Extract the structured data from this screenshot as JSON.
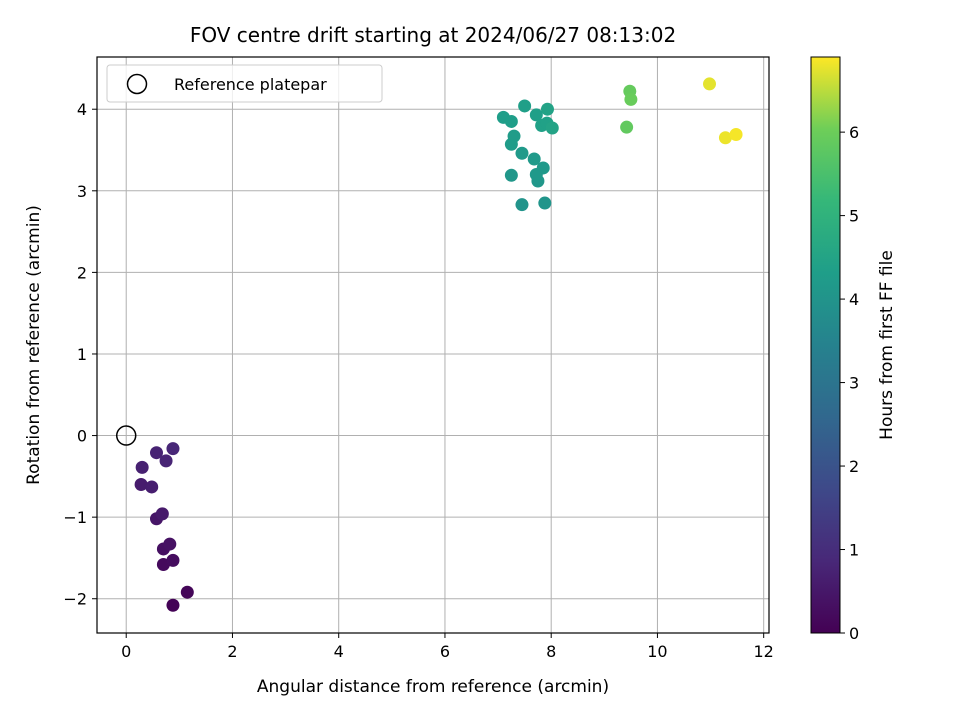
{
  "chart_data": {
    "type": "scatter",
    "title": "FOV centre drift starting at 2024/06/27 08:13:02",
    "xlabel": "Angular distance from reference (arcmin)",
    "ylabel": "Rotation from reference (arcmin)",
    "xlim": [
      -0.55,
      12.1
    ],
    "ylim": [
      -2.42,
      4.64
    ],
    "xticks": [
      0,
      2,
      4,
      6,
      8,
      10,
      12
    ],
    "yticks": [
      -2,
      -1,
      0,
      1,
      2,
      3,
      4
    ],
    "grid": true,
    "legend": {
      "position": "top-left",
      "entries": [
        "Reference platepar"
      ]
    },
    "reference_point": {
      "x": 0,
      "y": 0
    },
    "colorbar": {
      "label": "Hours from first FF file",
      "range": [
        0,
        6.9
      ],
      "ticks": [
        0,
        1,
        2,
        3,
        4,
        5,
        6
      ],
      "colormap": "viridis"
    },
    "points": [
      {
        "x": 0.88,
        "y": -2.08,
        "h": 0.05
      },
      {
        "x": 1.15,
        "y": -1.92,
        "h": 0.1
      },
      {
        "x": 0.7,
        "y": -1.58,
        "h": 0.2
      },
      {
        "x": 0.88,
        "y": -1.53,
        "h": 0.25
      },
      {
        "x": 0.7,
        "y": -1.39,
        "h": 0.3
      },
      {
        "x": 0.82,
        "y": -1.33,
        "h": 0.35
      },
      {
        "x": 0.57,
        "y": -1.02,
        "h": 0.45
      },
      {
        "x": 0.68,
        "y": -0.96,
        "h": 0.55
      },
      {
        "x": 0.28,
        "y": -0.6,
        "h": 0.6
      },
      {
        "x": 0.48,
        "y": -0.63,
        "h": 0.65
      },
      {
        "x": 0.3,
        "y": -0.39,
        "h": 0.7
      },
      {
        "x": 0.57,
        "y": -0.21,
        "h": 0.75
      },
      {
        "x": 0.75,
        "y": -0.31,
        "h": 0.8
      },
      {
        "x": 0.88,
        "y": -0.16,
        "h": 0.85
      },
      {
        "x": 7.45,
        "y": 2.83,
        "h": 4.0
      },
      {
        "x": 7.88,
        "y": 2.85,
        "h": 4.05
      },
      {
        "x": 7.25,
        "y": 3.19,
        "h": 4.1
      },
      {
        "x": 7.75,
        "y": 3.12,
        "h": 4.1
      },
      {
        "x": 7.72,
        "y": 3.2,
        "h": 4.15
      },
      {
        "x": 7.85,
        "y": 3.28,
        "h": 4.15
      },
      {
        "x": 7.68,
        "y": 3.39,
        "h": 4.2
      },
      {
        "x": 7.45,
        "y": 3.46,
        "h": 4.2
      },
      {
        "x": 7.25,
        "y": 3.57,
        "h": 4.25
      },
      {
        "x": 7.3,
        "y": 3.67,
        "h": 4.25
      },
      {
        "x": 7.1,
        "y": 3.9,
        "h": 4.3
      },
      {
        "x": 7.25,
        "y": 3.85,
        "h": 4.3
      },
      {
        "x": 7.5,
        "y": 4.04,
        "h": 4.35
      },
      {
        "x": 7.72,
        "y": 3.93,
        "h": 4.35
      },
      {
        "x": 7.82,
        "y": 3.8,
        "h": 4.4
      },
      {
        "x": 7.92,
        "y": 3.83,
        "h": 4.4
      },
      {
        "x": 7.93,
        "y": 4.0,
        "h": 4.45
      },
      {
        "x": 8.02,
        "y": 3.77,
        "h": 4.5
      },
      {
        "x": 9.42,
        "y": 3.78,
        "h": 5.85
      },
      {
        "x": 9.48,
        "y": 4.22,
        "h": 5.9
      },
      {
        "x": 9.5,
        "y": 4.12,
        "h": 5.95
      },
      {
        "x": 10.98,
        "y": 4.31,
        "h": 6.75
      },
      {
        "x": 11.28,
        "y": 3.65,
        "h": 6.8
      },
      {
        "x": 11.48,
        "y": 3.69,
        "h": 6.85
      }
    ]
  }
}
